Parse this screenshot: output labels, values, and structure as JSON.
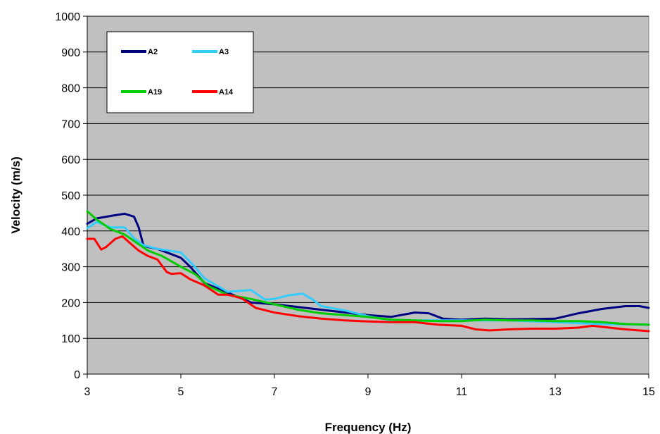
{
  "chart_data": {
    "type": "line",
    "title": "",
    "xlabel": "Frequency (Hz)",
    "ylabel": "Velocity (m/s)",
    "xlim": [
      3,
      15
    ],
    "ylim": [
      0,
      1000
    ],
    "x_ticks": [
      "3",
      "5",
      "7",
      "9",
      "11",
      "13",
      "15"
    ],
    "y_ticks": [
      "0",
      "100",
      "200",
      "300",
      "400",
      "500",
      "600",
      "700",
      "800",
      "900",
      "1000"
    ],
    "grid": true,
    "plot_background": "#c0c0c0",
    "legend_position": "top-left",
    "series": [
      {
        "name": "A2",
        "color": "#000080",
        "x": [
          3,
          3.2,
          3.5,
          3.8,
          4.0,
          4.1,
          4.2,
          4.3,
          4.5,
          4.7,
          5.0,
          5.2,
          5.5,
          6.0,
          6.5,
          7.0,
          8.0,
          9.0,
          9.5,
          10.0,
          10.3,
          10.6,
          11.0,
          11.5,
          12.0,
          13.0,
          13.5,
          14.0,
          14.5,
          14.8,
          15.0
        ],
        "y": [
          420,
          435,
          442,
          448,
          440,
          410,
          360,
          355,
          350,
          340,
          325,
          300,
          255,
          228,
          200,
          195,
          180,
          165,
          160,
          172,
          170,
          155,
          152,
          155,
          153,
          155,
          170,
          182,
          190,
          190,
          185
        ]
      },
      {
        "name": "A3",
        "color": "#33ccff",
        "x": [
          3,
          3.2,
          3.5,
          3.8,
          4.0,
          4.2,
          4.5,
          5.0,
          5.3,
          5.5,
          6.0,
          6.5,
          6.8,
          7.0,
          7.3,
          7.6,
          7.8,
          8.0,
          8.5,
          9.0,
          9.5,
          10.0,
          11.0,
          12.0,
          13.0,
          14.0,
          15.0
        ],
        "y": [
          408,
          425,
          410,
          410,
          380,
          360,
          350,
          340,
          300,
          268,
          230,
          235,
          208,
          210,
          220,
          225,
          210,
          190,
          178,
          162,
          150,
          150,
          150,
          150,
          145,
          140,
          138
        ]
      },
      {
        "name": "A19",
        "color": "#00cc00",
        "x": [
          3,
          3.2,
          3.5,
          3.8,
          4.0,
          4.3,
          4.6,
          5.0,
          5.3,
          5.6,
          6.0,
          6.5,
          7.0,
          7.5,
          8.0,
          8.5,
          9.0,
          9.5,
          10.0,
          10.5,
          11.0,
          11.5,
          12.0,
          12.5,
          13.0,
          13.5,
          14.0,
          14.5,
          15.0
        ],
        "y": [
          455,
          432,
          405,
          390,
          372,
          345,
          330,
          300,
          280,
          245,
          222,
          210,
          195,
          180,
          170,
          165,
          160,
          152,
          150,
          148,
          148,
          152,
          150,
          150,
          148,
          148,
          145,
          140,
          138
        ]
      },
      {
        "name": "A14",
        "color": "#ff0000",
        "x": [
          3,
          3.15,
          3.3,
          3.4,
          3.6,
          3.75,
          3.9,
          4.1,
          4.3,
          4.5,
          4.7,
          4.8,
          5.0,
          5.2,
          5.5,
          5.8,
          6.0,
          6.3,
          6.6,
          7.0,
          7.5,
          8.0,
          8.5,
          9.0,
          9.5,
          10.0,
          10.5,
          11.0,
          11.3,
          11.6,
          12.0,
          12.5,
          13.0,
          13.5,
          13.8,
          14.0,
          14.5,
          15.0
        ],
        "y": [
          378,
          378,
          348,
          355,
          378,
          385,
          368,
          345,
          330,
          320,
          285,
          280,
          282,
          265,
          248,
          222,
          222,
          212,
          185,
          172,
          162,
          155,
          150,
          147,
          145,
          145,
          138,
          135,
          125,
          122,
          125,
          127,
          127,
          130,
          135,
          132,
          125,
          120
        ]
      }
    ]
  }
}
